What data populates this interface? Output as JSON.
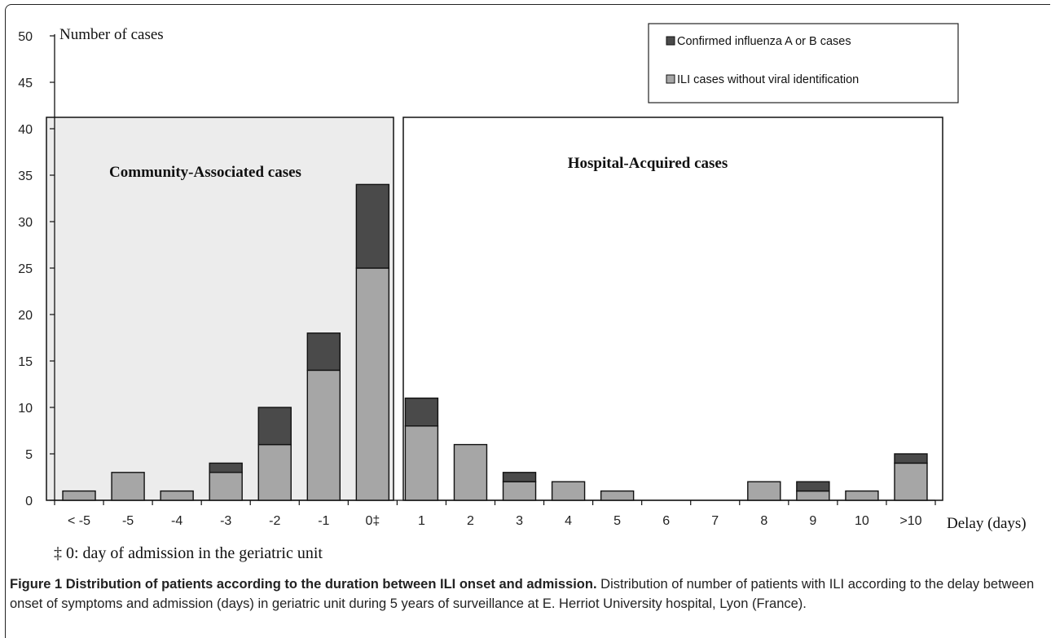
{
  "chart_data": {
    "type": "bar",
    "stacked": true,
    "categories": [
      "< -5",
      "-5",
      "-4",
      "-3",
      "-2",
      "-1",
      "0‡",
      "1",
      "2",
      "3",
      "4",
      "5",
      "6",
      "7",
      "8",
      "9",
      "10",
      ">10"
    ],
    "series": [
      {
        "name": "ILI cases without viral identification",
        "values": [
          1,
          3,
          1,
          3,
          6,
          14,
          25,
          8,
          6,
          2,
          2,
          1,
          0,
          0,
          2,
          1,
          1,
          4
        ],
        "color": "#a6a6a6"
      },
      {
        "name": "Confirmed influenza A or B cases",
        "values": [
          0,
          0,
          0,
          1,
          4,
          4,
          9,
          3,
          0,
          1,
          0,
          0,
          0,
          0,
          0,
          1,
          0,
          1
        ],
        "color": "#4a4a4a"
      }
    ],
    "ylabel": "Number of cases",
    "xlabel": "Delay (days)",
    "ylim": [
      0,
      50
    ],
    "yticks": [
      0,
      5,
      10,
      15,
      20,
      25,
      30,
      35,
      40,
      45,
      50
    ],
    "legend_position": "top-right",
    "regions": [
      {
        "label": "Community-Associated cases",
        "fill": "#ececec"
      },
      {
        "label": "Hospital-Acquired cases",
        "fill": "#ffffff"
      }
    ]
  },
  "footnote": "‡ 0: day of admission in the geriatric unit",
  "caption": {
    "title": "Figure 1 Distribution of patients according to the duration between ILI onset and admission.",
    "text": " Distribution of number of patients with ILI according to the delay between onset of symptoms and admission (days) in geriatric unit during 5 years of surveillance at E. Herriot University hospital, Lyon (France)."
  }
}
